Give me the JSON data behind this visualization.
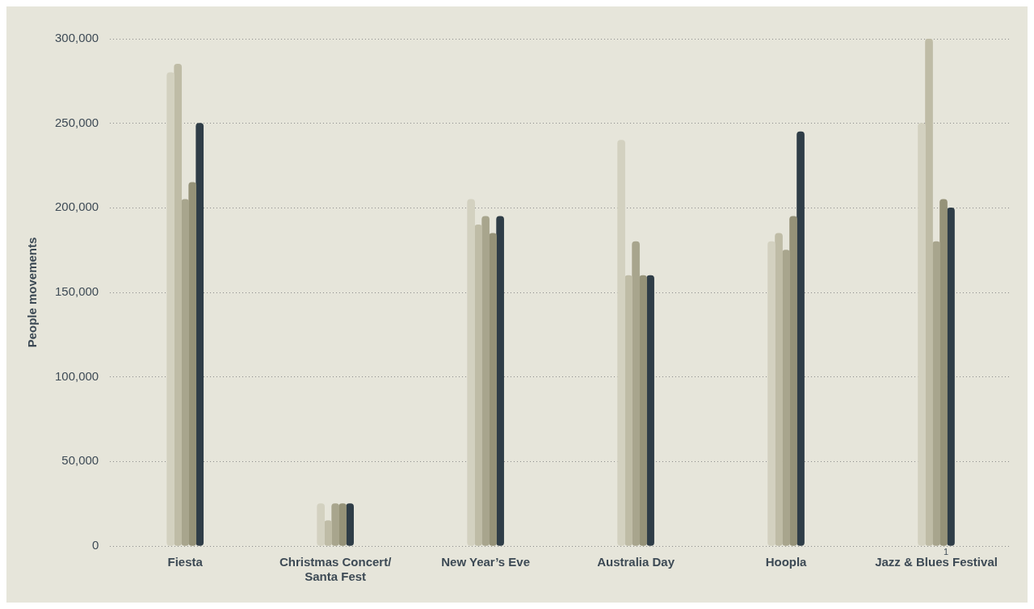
{
  "chart_data": {
    "type": "bar",
    "ylabel": "People movements",
    "categories": [
      "Fiesta",
      "Christmas Concert/ Santa Fest",
      "New Year’s Eve",
      "Australia Day",
      "Hoopla",
      "Jazz & Blues Festival"
    ],
    "series": [
      {
        "color": "#d3d1c0",
        "values": [
          280000,
          25000,
          205000,
          240000,
          180000,
          250000
        ]
      },
      {
        "color": "#bfbca6",
        "values": [
          285000,
          15000,
          190000,
          160000,
          185000,
          300000
        ]
      },
      {
        "color": "#a8a58d",
        "values": [
          205000,
          25000,
          195000,
          180000,
          175000,
          180000
        ]
      },
      {
        "color": "#959278",
        "values": [
          215000,
          25000,
          185000,
          160000,
          195000,
          205000
        ]
      },
      {
        "color": "#2f3d47",
        "values": [
          250000,
          25000,
          195000,
          160000,
          245000,
          200000
        ]
      }
    ],
    "ylim": [
      0,
      300000
    ],
    "yticks": [
      0,
      {
        "value": 50000,
        "label": "50,000"
      },
      {
        "value": 100000,
        "label": "100,000"
      },
      {
        "value": 150000,
        "label": "150,000"
      },
      {
        "value": 200000,
        "label": "200,000"
      },
      {
        "value": 250000,
        "label": "250,000"
      },
      {
        "value": 300000,
        "label": "300,000"
      }
    ],
    "grid": "y",
    "legend": false,
    "annotations": [
      {
        "text": "1",
        "x": "Jazz & Blues Festival",
        "y": 0
      }
    ]
  }
}
